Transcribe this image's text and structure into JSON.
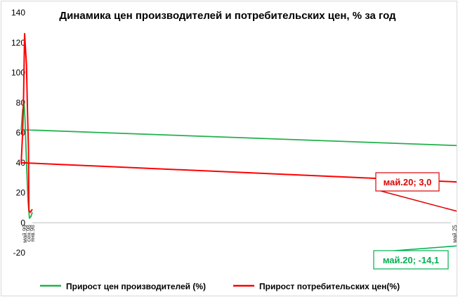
{
  "chart_data": {
    "type": "line",
    "title": "Динамика цен производителей и потребительских цен, % за год",
    "ylim": [
      -20,
      140
    ],
    "yticks": [
      -20,
      0,
      20,
      40,
      60,
      80,
      100,
      120,
      140
    ],
    "x_start": "янв.98",
    "x_end": "дек.25",
    "xtick_labels": [
      "янв.98",
      "сен.98",
      "май.99",
      "янв.00",
      "сен.00",
      "май.01",
      "янв.02",
      "сен.02",
      "май.03",
      "янв.04",
      "сен.04",
      "май.05",
      "янв.06",
      "сен.06",
      "май.07",
      "янв.08",
      "сен.08",
      "май.09",
      "янв.10",
      "сен.10",
      "май.11",
      "янв.12",
      "сен.12",
      "май.13",
      "янв.14",
      "сен.14",
      "май.15",
      "янв.16",
      "сен.16",
      "май.17",
      "янв.18",
      "сен.18",
      "май.19",
      "янв.20",
      "сен.20",
      "май.21",
      "янв.22",
      "сен.22",
      "май.23",
      "янв.24",
      "сен.24",
      "май.25"
    ],
    "grid": false,
    "legend_position": "bottom",
    "series": [
      {
        "name": "Прирост цен производителей (%)",
        "color": "#22b14c",
        "points": [
          [
            "янв.98",
            7
          ],
          [
            "апр.98",
            4
          ],
          [
            "июл.98",
            3
          ],
          [
            "окт.98",
            15
          ],
          [
            "янв.99",
            40
          ],
          [
            "апр.99",
            68
          ],
          [
            "июн.99",
            80
          ],
          [
            "сен.99",
            75
          ],
          [
            "дек.99",
            62
          ],
          [
            "апр.00",
            48
          ],
          [
            "сен.00",
            30
          ],
          [
            "янв.01",
            18
          ],
          [
            "май.01",
            12
          ],
          [
            "сен.01",
            5
          ],
          [
            "янв.02",
            4
          ],
          [
            "май.02",
            8
          ],
          [
            "сен.02",
            13
          ],
          [
            "янв.03",
            18
          ],
          [
            "апр.03",
            22
          ],
          [
            "июл.03",
            18
          ],
          [
            "окт.03",
            12
          ],
          [
            "янв.04",
            14
          ],
          [
            "май.04",
            22
          ],
          [
            "сен.04",
            26
          ],
          [
            "дек.04",
            28
          ],
          [
            "апр.05",
            22
          ],
          [
            "сен.05",
            20
          ],
          [
            "янв.06",
            17
          ],
          [
            "май.06",
            12
          ],
          [
            "сен.06",
            10
          ],
          [
            "янв.07",
            7
          ],
          [
            "май.07",
            9
          ],
          [
            "сен.07",
            13
          ],
          [
            "янв.08",
            20
          ],
          [
            "июн.08",
            27
          ],
          [
            "сен.08",
            33
          ],
          [
            "ноя.08",
            20
          ],
          [
            "фев.09",
            -5
          ],
          [
            "май.09",
            -14
          ],
          [
            "авг.09",
            -10
          ],
          [
            "янв.10",
            16
          ],
          [
            "май.10",
            12
          ],
          [
            "сен.10",
            10
          ],
          [
            "янв.11",
            16
          ],
          [
            "апр.11",
            21
          ],
          [
            "сен.11",
            16
          ],
          [
            "янв.12",
            10
          ],
          [
            "май.12",
            3
          ],
          [
            "сен.12",
            5
          ],
          [
            "янв.13",
            4
          ],
          [
            "май.13",
            3
          ],
          [
            "сен.13",
            2
          ],
          [
            "янв.14",
            5
          ],
          [
            "май.14",
            8
          ],
          [
            "сен.14",
            9
          ],
          [
            "янв.15",
            15
          ],
          [
            "май.15",
            12
          ],
          [
            "сен.15",
            15
          ],
          [
            "янв.16",
            7
          ],
          [
            "май.16",
            3
          ],
          [
            "сен.16",
            6
          ],
          [
            "янв.17",
            10
          ],
          [
            "май.17",
            7
          ],
          [
            "сен.17",
            6
          ],
          [
            "янв.18",
            7
          ],
          [
            "май.18",
            8
          ],
          [
            "сен.18",
            16
          ],
          [
            "ноя.18",
            15
          ],
          [
            "янв.19",
            10
          ],
          [
            "май.19",
            6
          ],
          [
            "сен.19",
            -1
          ],
          [
            "янв.20",
            -1
          ],
          [
            "май.20",
            -14.1
          ]
        ]
      },
      {
        "name": "Прирост потребительских цен(%)",
        "color": "#ff0000",
        "points": [
          [
            "янв.98",
            9
          ],
          [
            "май.98",
            7
          ],
          [
            "авг.98",
            8
          ],
          [
            "сен.98",
            50
          ],
          [
            "ноя.98",
            75
          ],
          [
            "янв.99",
            105
          ],
          [
            "май.99",
            126
          ],
          [
            "июл.99",
            85
          ],
          [
            "сен.99",
            60
          ],
          [
            "дек.99",
            40
          ],
          [
            "мар.00",
            23
          ],
          [
            "июн.00",
            20
          ],
          [
            "сен.00",
            20
          ],
          [
            "янв.01",
            22
          ],
          [
            "май.01",
            24
          ],
          [
            "сен.01",
            21
          ],
          [
            "янв.02",
            18
          ],
          [
            "сен.02",
            15
          ],
          [
            "янв.03",
            14
          ],
          [
            "сен.03",
            13
          ],
          [
            "янв.04",
            11
          ],
          [
            "сен.04",
            11
          ],
          [
            "янв.05",
            13
          ],
          [
            "май.05",
            14
          ],
          [
            "сен.05",
            13
          ],
          [
            "янв.06",
            12
          ],
          [
            "сен.06",
            9
          ],
          [
            "янв.07",
            8
          ],
          [
            "сен.07",
            9
          ],
          [
            "янв.08",
            12
          ],
          [
            "май.08",
            15
          ],
          [
            "сен.08",
            15
          ],
          [
            "янв.09",
            13
          ],
          [
            "май.09",
            13
          ],
          [
            "сен.09",
            11
          ],
          [
            "янв.10",
            8
          ],
          [
            "май.10",
            6
          ],
          [
            "сен.10",
            7
          ],
          [
            "янв.11",
            9
          ],
          [
            "май.11",
            9
          ],
          [
            "сен.11",
            7
          ],
          [
            "янв.12",
            4
          ],
          [
            "сен.12",
            6
          ],
          [
            "янв.13",
            7
          ],
          [
            "сен.13",
            6
          ],
          [
            "янв.14",
            6
          ],
          [
            "сен.14",
            8
          ],
          [
            "янв.15",
            15
          ],
          [
            "май.15",
            16
          ],
          [
            "сен.15",
            16
          ],
          [
            "янв.16",
            10
          ],
          [
            "май.16",
            7
          ],
          [
            "сен.16",
            6
          ],
          [
            "янв.17",
            5
          ],
          [
            "май.17",
            4
          ],
          [
            "сен.17",
            3
          ],
          [
            "янв.18",
            2
          ],
          [
            "сен.18",
            3
          ],
          [
            "янв.19",
            5
          ],
          [
            "май.19",
            5
          ],
          [
            "сен.19",
            4
          ],
          [
            "янв.20",
            2.4
          ],
          [
            "май.20",
            3
          ]
        ]
      }
    ],
    "annotations": [
      {
        "text": "май.20; 3,0",
        "x": "май.20",
        "y": 3.0,
        "color": "#e00000"
      },
      {
        "text": "май.20; -14,1",
        "x": "май.20",
        "y": -14.1,
        "color": "#00b050"
      }
    ]
  }
}
